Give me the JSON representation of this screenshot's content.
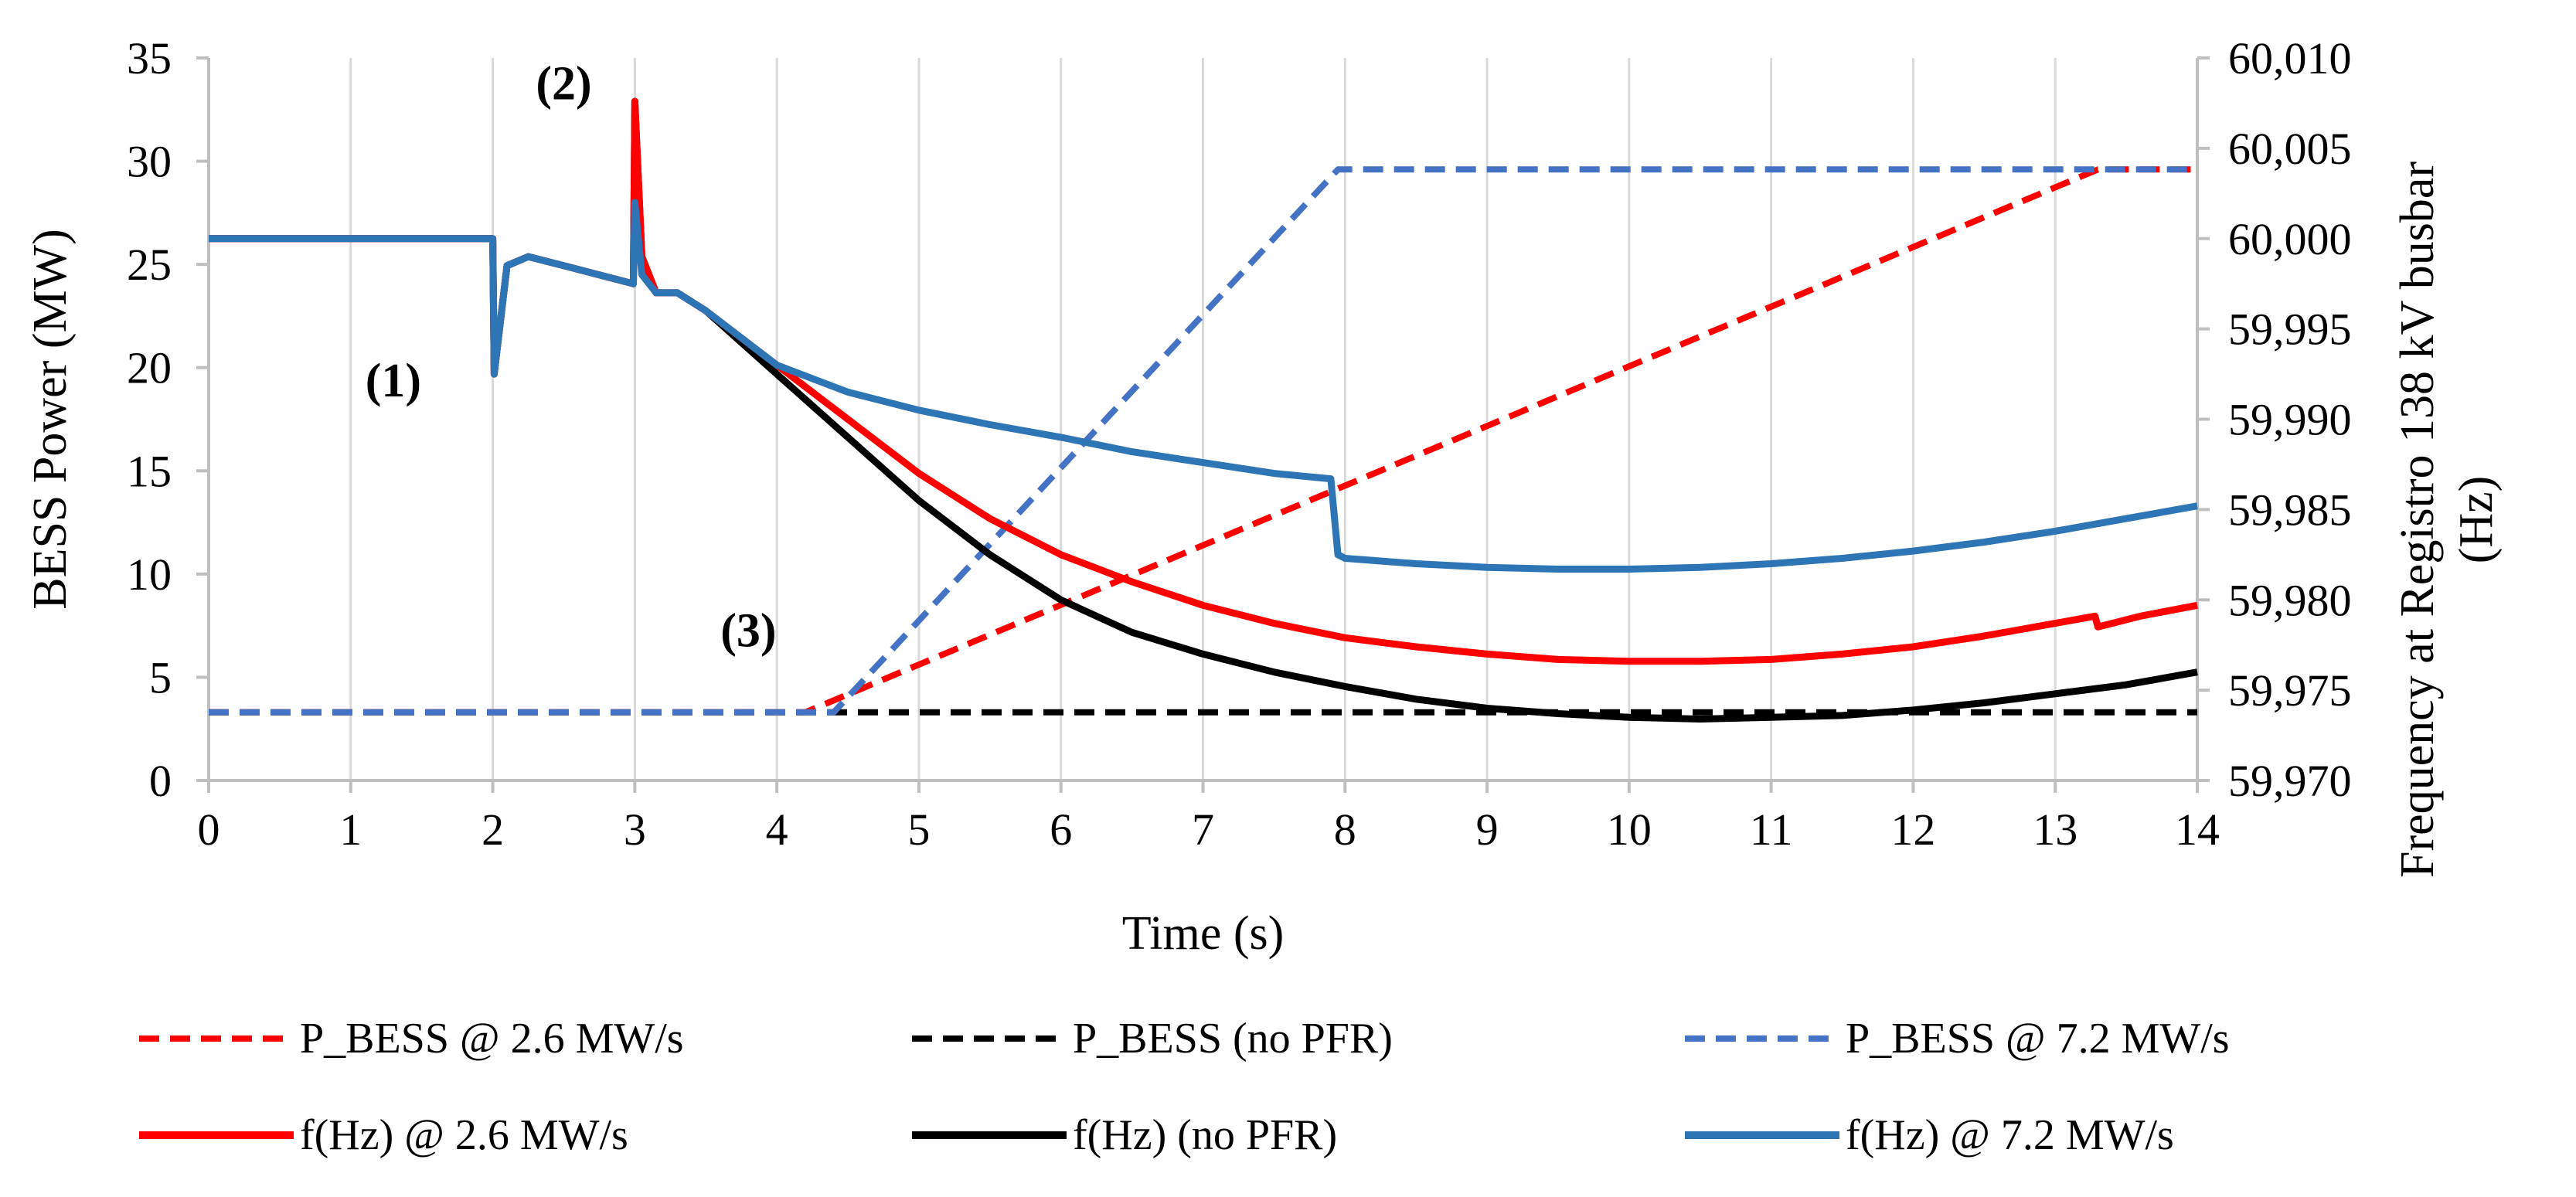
{
  "chart_data": {
    "type": "line",
    "title": "",
    "xlabel": "Time (s)",
    "ylabel": "BESS Power (MW)",
    "y2label": "Frequency at  Registro 138 kV busbar (Hz)",
    "xlim": [
      0,
      14
    ],
    "ylim": [
      0,
      35
    ],
    "y2lim": [
      59.97,
      60.01
    ],
    "x_ticks": [
      "0",
      "1",
      "2",
      "3",
      "4",
      "5",
      "6",
      "7",
      "8",
      "9",
      "10",
      "11",
      "12",
      "13",
      "14"
    ],
    "y_ticks": [
      "0",
      "5",
      "10",
      "15",
      "20",
      "25",
      "30",
      "35"
    ],
    "y2_ticks": [
      "59,970",
      "59,975",
      "59,980",
      "59,985",
      "59,990",
      "59,995",
      "60,000",
      "60,005",
      "60,010"
    ],
    "grid": "vertical",
    "legend_position": "bottom",
    "annotations": [
      {
        "label": "(1)",
        "x": 1.3,
        "y": 18.6
      },
      {
        "label": "(2)",
        "x": 2.5,
        "y": 33.0
      },
      {
        "label": "(3)",
        "x": 3.8,
        "y": 6.5
      }
    ],
    "series": [
      {
        "name": "P_BESS @ 2.6 MW/s",
        "axis": "left",
        "color": "#ff0000",
        "dash": true,
        "x": [
          0,
          4.2,
          13.3,
          14
        ],
        "y": [
          3.3,
          3.3,
          29.6,
          29.6
        ]
      },
      {
        "name": "P_BESS (no PFR)",
        "axis": "left",
        "color": "#000000",
        "dash": true,
        "x": [
          0,
          14
        ],
        "y": [
          3.3,
          3.3
        ]
      },
      {
        "name": "P_BESS @ 7.2 MW/s",
        "axis": "left",
        "color": "#4472c4",
        "dash": true,
        "x": [
          0,
          4.4,
          7.95,
          14
        ],
        "y": [
          3.3,
          3.3,
          29.6,
          29.6
        ]
      },
      {
        "name": "f(Hz) @ 2.6 MW/s",
        "axis": "right",
        "color": "#ff0000",
        "dash": false,
        "x": [
          0,
          2,
          2.01,
          2.1,
          2.25,
          2.5,
          2.99,
          3.0,
          3.05,
          3.15,
          3.3,
          3.5,
          4.0,
          4.5,
          5.0,
          5.5,
          6.0,
          6.5,
          7.0,
          7.5,
          8.0,
          8.5,
          9.0,
          9.5,
          10.0,
          10.5,
          11.0,
          11.5,
          12.0,
          12.5,
          13.0,
          13.28,
          13.3,
          13.35,
          13.6,
          14.0
        ],
        "y": [
          60.0,
          60.0,
          59.9925,
          59.9985,
          59.999,
          59.9985,
          59.9975,
          60.0076,
          59.999,
          59.997,
          59.997,
          59.996,
          59.993,
          59.99,
          59.987,
          59.9845,
          59.9825,
          59.981,
          59.9797,
          59.9787,
          59.9779,
          59.9774,
          59.977,
          59.9767,
          59.9766,
          59.9766,
          59.9767,
          59.977,
          59.9774,
          59.978,
          59.9787,
          59.9791,
          59.9785,
          59.9786,
          59.9791,
          59.9797
        ]
      },
      {
        "name": "f(Hz) (no PFR)",
        "axis": "right",
        "color": "#000000",
        "dash": false,
        "x": [
          0,
          2,
          2.01,
          2.1,
          2.25,
          2.5,
          2.99,
          3.0,
          3.05,
          3.15,
          3.3,
          3.5,
          4.0,
          4.5,
          5.0,
          5.5,
          6.0,
          6.5,
          7.0,
          7.5,
          8.0,
          8.5,
          9.0,
          9.5,
          10.0,
          10.5,
          11.0,
          11.5,
          12.0,
          12.5,
          13.0,
          13.5,
          14.0
        ],
        "y": [
          60.0,
          60.0,
          59.9925,
          59.9985,
          59.999,
          59.9985,
          59.9975,
          60.0076,
          59.999,
          59.997,
          59.997,
          59.996,
          59.9925,
          59.989,
          59.9855,
          59.9825,
          59.98,
          59.9782,
          59.977,
          59.976,
          59.9752,
          59.9745,
          59.974,
          59.9737,
          59.9735,
          59.9734,
          59.9735,
          59.9736,
          59.9739,
          59.9743,
          59.9748,
          59.9753,
          59.976
        ]
      },
      {
        "name": "f(Hz) @ 7.2 MW/s",
        "axis": "right",
        "color": "#2e75b6",
        "dash": false,
        "x": [
          0,
          2,
          2.01,
          2.1,
          2.25,
          2.5,
          2.99,
          3.0,
          3.05,
          3.15,
          3.3,
          3.5,
          4.0,
          4.5,
          5.0,
          5.5,
          6.0,
          6.5,
          7.0,
          7.5,
          7.9,
          7.95,
          8.0,
          8.5,
          9.0,
          9.5,
          10.0,
          10.5,
          11.0,
          11.5,
          12.0,
          12.5,
          13.0,
          13.5,
          14.0
        ],
        "y": [
          60.0,
          60.0,
          59.9925,
          59.9985,
          59.999,
          59.9985,
          59.9975,
          60.002,
          59.998,
          59.997,
          59.997,
          59.996,
          59.993,
          59.9915,
          59.9905,
          59.9897,
          59.989,
          59.9882,
          59.9876,
          59.987,
          59.9867,
          59.9825,
          59.9823,
          59.982,
          59.9818,
          59.9817,
          59.9817,
          59.9818,
          59.982,
          59.9823,
          59.9827,
          59.9832,
          59.9838,
          59.9845,
          59.9852
        ]
      }
    ]
  }
}
